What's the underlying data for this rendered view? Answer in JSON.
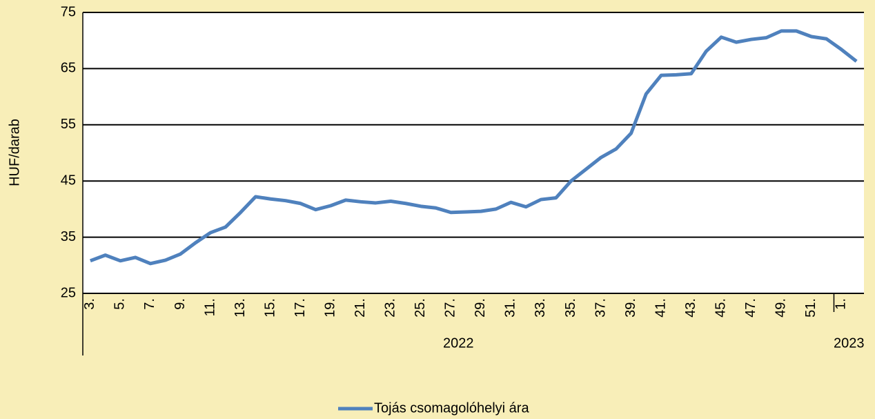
{
  "chart_data": {
    "type": "line",
    "y_label": "HUF/darab",
    "categories": [
      "3.",
      null,
      "5.",
      null,
      "7.",
      null,
      "9.",
      null,
      "11.",
      null,
      "13.",
      null,
      "15.",
      null,
      "17.",
      null,
      "19.",
      null,
      "21.",
      null,
      "23.",
      null,
      "25.",
      null,
      "27.",
      null,
      "29.",
      null,
      "31.",
      null,
      "33.",
      null,
      "35.",
      null,
      "37.",
      null,
      "39.",
      null,
      "41.",
      null,
      "43.",
      null,
      "45.",
      null,
      "47.",
      null,
      "49.",
      null,
      "51.",
      null,
      "1.",
      null
    ],
    "groups": [
      {
        "label": "2022",
        "count": 50
      },
      {
        "label": "2023",
        "count": 2
      }
    ],
    "series": [
      {
        "name": "Tojás csomagolóhelyi ára",
        "color": "#4f81bd",
        "values": [
          30.8,
          31.8,
          30.8,
          31.4,
          30.3,
          30.9,
          32.0,
          34.0,
          35.8,
          36.8,
          39.4,
          42.2,
          41.8,
          41.5,
          41.0,
          39.9,
          40.6,
          41.6,
          41.3,
          41.1,
          41.4,
          41.0,
          40.5,
          40.2,
          39.4,
          39.5,
          39.6,
          40.0,
          41.2,
          40.4,
          41.7,
          42.0,
          45.0,
          47.1,
          49.2,
          50.7,
          53.5,
          60.5,
          63.8,
          63.9,
          64.1,
          68.1,
          70.6,
          69.7,
          70.2,
          70.5,
          71.7,
          71.7,
          70.7,
          70.3,
          68.4,
          66.3
        ]
      }
    ],
    "ylim": [
      25,
      75
    ],
    "yticks": [
      25,
      35,
      45,
      55,
      65,
      75
    ],
    "grid": true,
    "legend": "bottom"
  }
}
